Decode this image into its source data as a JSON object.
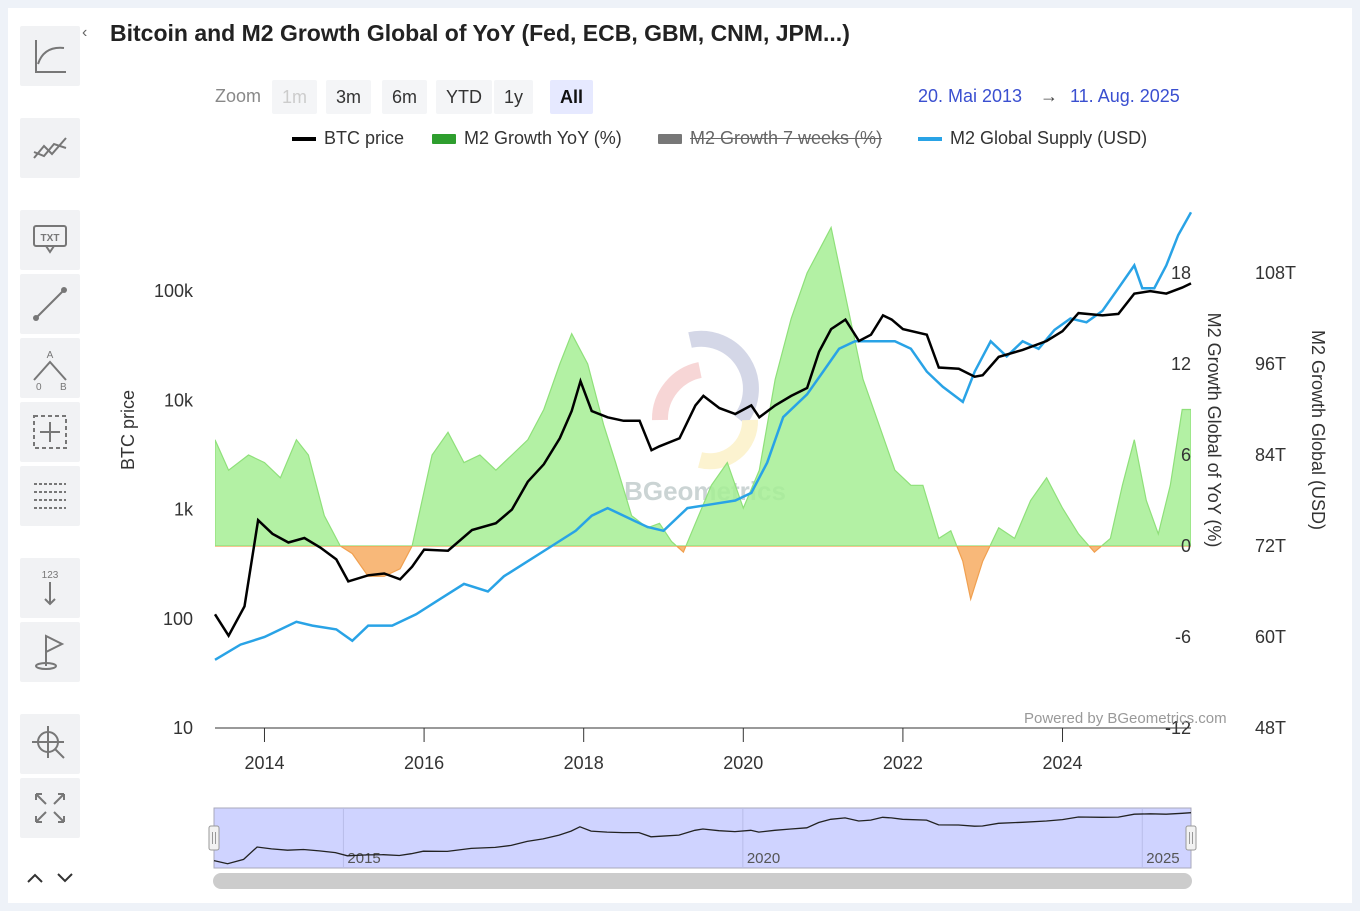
{
  "title": "Bitcoin and M2 Growth Global of YoY (Fed, ECB, GBM, CNM, JPM...)",
  "zoom": {
    "label": "Zoom",
    "buttons": [
      {
        "label": "1m",
        "state": "disabled"
      },
      {
        "label": "3m",
        "state": "normal"
      },
      {
        "label": "6m",
        "state": "normal"
      },
      {
        "label": "YTD",
        "state": "normal"
      },
      {
        "label": "1y",
        "state": "normal"
      },
      {
        "label": "All",
        "state": "active"
      }
    ]
  },
  "range": {
    "from": "20. Mai 2013",
    "arrow": "→",
    "to": "11. Aug. 2025"
  },
  "legend": [
    {
      "label": "BTC price",
      "color": "#000000",
      "hidden": false
    },
    {
      "label": "M2 Growth YoY (%)",
      "color": "#2e9e2e",
      "hidden": false
    },
    {
      "label": "M2 Growth 7 weeks (%)",
      "color": "#777777",
      "hidden": true
    },
    {
      "label": "M2 Global Supply (USD)",
      "color": "#29a3e6",
      "hidden": false
    }
  ],
  "credit": "Powered by BGeometrics.com",
  "watermark": "BGeometrics",
  "tools": [
    "chart-type-icon",
    "indicators-icon",
    "text-annotation-icon",
    "line-tool-icon",
    "measure-abc-icon",
    "crosshair-box-icon",
    "grid-table-icon",
    "label-123-icon",
    "flag-icon",
    "zoom-pan-icon",
    "fullscreen-icon"
  ],
  "nav": {
    "up": "^",
    "down": "v"
  },
  "chart_data": {
    "type": "line",
    "title": "Bitcoin and M2 Growth Global of YoY (Fed, ECB, GBM, CNM, JPM...)",
    "x_range": [
      "2013-05-20",
      "2025-08-11"
    ],
    "x_ticks": [
      "2014",
      "2016",
      "2018",
      "2020",
      "2022",
      "2024"
    ],
    "axes": {
      "left": {
        "label": "BTC price",
        "scale": "log",
        "range": [
          10,
          1000000
        ],
        "ticks": [
          {
            "v": 10,
            "t": "10"
          },
          {
            "v": 100,
            "t": "100"
          },
          {
            "v": 1000,
            "t": "1k"
          },
          {
            "v": 10000,
            "t": "10k"
          },
          {
            "v": 100000,
            "t": "100k"
          }
        ]
      },
      "right1": {
        "label": "M2 Growth Global of YoY (%)",
        "range": [
          -12,
          24
        ],
        "ticks": [
          {
            "v": -12,
            "t": "-12"
          },
          {
            "v": -6,
            "t": "-6"
          },
          {
            "v": 0,
            "t": "0"
          },
          {
            "v": 6,
            "t": "6"
          },
          {
            "v": 12,
            "t": "12"
          },
          {
            "v": 18,
            "t": "18"
          }
        ]
      },
      "right2": {
        "label": "M2 Growth Global (USD)",
        "range": [
          48,
          120
        ],
        "unit_suffix": "T",
        "ticks": [
          {
            "v": 48,
            "t": "48T"
          },
          {
            "v": 60,
            "t": "60T"
          },
          {
            "v": 72,
            "t": "72T"
          },
          {
            "v": 84,
            "t": "84T"
          },
          {
            "v": 96,
            "t": "96T"
          },
          {
            "v": 108,
            "t": "108T"
          }
        ]
      }
    },
    "series": [
      {
        "name": "BTC price",
        "axis": "left",
        "kind": "line",
        "color": "#000000",
        "x": [
          2013.38,
          2013.55,
          2013.75,
          2013.92,
          2014.1,
          2014.3,
          2014.5,
          2014.7,
          2014.9,
          2015.05,
          2015.3,
          2015.5,
          2015.7,
          2015.85,
          2016.0,
          2016.3,
          2016.6,
          2016.9,
          2017.1,
          2017.3,
          2017.5,
          2017.7,
          2017.85,
          2017.96,
          2018.1,
          2018.3,
          2018.5,
          2018.7,
          2018.85,
          2018.95,
          2019.2,
          2019.4,
          2019.5,
          2019.7,
          2019.9,
          2020.1,
          2020.2,
          2020.4,
          2020.6,
          2020.8,
          2020.95,
          2021.1,
          2021.28,
          2021.45,
          2021.6,
          2021.75,
          2021.86,
          2022.0,
          2022.3,
          2022.45,
          2022.7,
          2022.9,
          2023.0,
          2023.2,
          2023.5,
          2023.8,
          2024.0,
          2024.2,
          2024.5,
          2024.7,
          2024.9,
          2025.1,
          2025.3,
          2025.5,
          2025.61
        ],
        "values": [
          110,
          70,
          130,
          800,
          600,
          500,
          550,
          450,
          350,
          220,
          250,
          260,
          230,
          300,
          430,
          420,
          650,
          750,
          1000,
          1800,
          2600,
          4500,
          8000,
          15000,
          8000,
          7000,
          6500,
          6500,
          3500,
          3800,
          4500,
          9000,
          11000,
          8500,
          7500,
          9000,
          7000,
          9000,
          11000,
          13000,
          28000,
          45000,
          55000,
          35000,
          40000,
          60000,
          55000,
          45000,
          40000,
          20000,
          19500,
          16500,
          17000,
          25000,
          29000,
          35000,
          43000,
          63000,
          60000,
          62000,
          95000,
          100000,
          95000,
          108000,
          118000
        ]
      },
      {
        "name": "M2 Growth YoY (%)",
        "axis": "right1",
        "kind": "area",
        "color": "#a6ef94",
        "negative_color": "#f7b06a",
        "x": [
          2013.38,
          2013.55,
          2013.8,
          2014.0,
          2014.2,
          2014.4,
          2014.55,
          2014.75,
          2014.95,
          2015.1,
          2015.3,
          2015.5,
          2015.7,
          2015.85,
          2016.1,
          2016.3,
          2016.5,
          2016.7,
          2016.9,
          2017.1,
          2017.3,
          2017.5,
          2017.7,
          2017.85,
          2018.05,
          2018.25,
          2018.4,
          2018.6,
          2018.8,
          2018.95,
          2019.1,
          2019.25,
          2019.4,
          2019.6,
          2019.8,
          2020.0,
          2020.2,
          2020.4,
          2020.6,
          2020.8,
          2021.0,
          2021.1,
          2021.3,
          2021.5,
          2021.7,
          2021.9,
          2022.1,
          2022.25,
          2022.45,
          2022.6,
          2022.75,
          2022.85,
          2023.0,
          2023.2,
          2023.4,
          2023.6,
          2023.8,
          2024.0,
          2024.2,
          2024.4,
          2024.6,
          2024.75,
          2024.9,
          2025.05,
          2025.2,
          2025.35,
          2025.5,
          2025.61
        ],
        "values": [
          7,
          5,
          6,
          5.5,
          4.5,
          7,
          6,
          2,
          0,
          -0.5,
          -2,
          -2,
          -1.5,
          0,
          6,
          7.5,
          5.5,
          6,
          5,
          6,
          7,
          9,
          12,
          14,
          12,
          8,
          5.5,
          2,
          1.2,
          1.5,
          0.3,
          -0.4,
          1.5,
          4,
          5.5,
          2.5,
          5,
          11,
          15,
          18,
          20,
          21,
          16,
          11,
          8,
          5,
          4,
          4,
          0.5,
          1,
          -1,
          -3.5,
          -1,
          1.2,
          0.5,
          3,
          4.5,
          2.5,
          0.8,
          -0.4,
          0.5,
          4,
          7,
          3,
          0.8,
          4,
          9,
          9
        ]
      },
      {
        "name": "M2 Global Supply (USD)",
        "axis": "right2",
        "kind": "line",
        "color": "#29a3e6",
        "x": [
          2013.38,
          2013.7,
          2014.0,
          2014.4,
          2014.6,
          2014.9,
          2015.1,
          2015.3,
          2015.6,
          2015.9,
          2016.2,
          2016.5,
          2016.8,
          2017.0,
          2017.3,
          2017.6,
          2017.9,
          2018.1,
          2018.3,
          2018.6,
          2018.8,
          2019.0,
          2019.3,
          2019.6,
          2019.9,
          2020.1,
          2020.3,
          2020.5,
          2020.8,
          2021.0,
          2021.2,
          2021.4,
          2021.6,
          2021.9,
          2022.1,
          2022.3,
          2022.5,
          2022.75,
          2022.9,
          2023.1,
          2023.3,
          2023.5,
          2023.7,
          2023.9,
          2024.1,
          2024.3,
          2024.5,
          2024.7,
          2024.9,
          2025.0,
          2025.15,
          2025.3,
          2025.45,
          2025.61
        ],
        "values": [
          57,
          59,
          60,
          62,
          61.5,
          61,
          59.5,
          61.5,
          61.5,
          63,
          65,
          67,
          66,
          68,
          70,
          72,
          74,
          76,
          77,
          75.5,
          74.5,
          74,
          77,
          77.5,
          78,
          79,
          83,
          89,
          92,
          95,
          98,
          99,
          99,
          99,
          98,
          95,
          93,
          91,
          95,
          99,
          97,
          99,
          98,
          100.5,
          102,
          101.5,
          103,
          106,
          109,
          106,
          106,
          109,
          113,
          116
        ]
      }
    ],
    "navigator": {
      "type": "line",
      "x_ticks": [
        "2015",
        "2020",
        "2025"
      ],
      "series": "BTC price"
    }
  }
}
